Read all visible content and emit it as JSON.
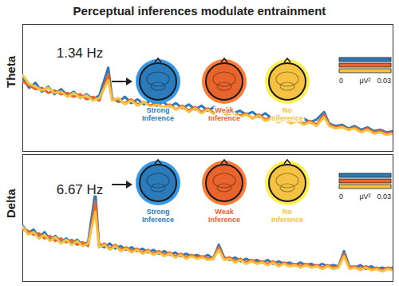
{
  "title": "Perceptual inferences modulate entrainment",
  "chart_data": [
    {
      "type": "line",
      "ylabel": "Theta",
      "annotation": "1.34 Hz",
      "tick_labels": false,
      "xlim": [
        0,
        5.8
      ],
      "ylim": [
        0,
        1
      ],
      "x": [
        0.0,
        0.1,
        0.2,
        0.3,
        0.4,
        0.5,
        0.6,
        0.7,
        0.8,
        0.9,
        1.0,
        1.1,
        1.2,
        1.34,
        1.4,
        1.5,
        1.6,
        1.7,
        1.8,
        1.9,
        2.0,
        2.1,
        2.2,
        2.3,
        2.4,
        2.5,
        2.6,
        2.7,
        2.8,
        2.9,
        3.0,
        3.1,
        3.2,
        3.3,
        3.4,
        3.5,
        3.6,
        3.7,
        3.8,
        3.9,
        4.0,
        4.1,
        4.2,
        4.3,
        4.4,
        4.5,
        4.6,
        4.72,
        4.8,
        4.9,
        5.0,
        5.1,
        5.2,
        5.3,
        5.4,
        5.5,
        5.6,
        5.7,
        5.8
      ],
      "series": [
        {
          "name": "Strong Inference",
          "color": "#2b7bba",
          "values": [
            0.58,
            0.5,
            0.54,
            0.47,
            0.51,
            0.45,
            0.49,
            0.44,
            0.47,
            0.42,
            0.45,
            0.41,
            0.44,
            0.66,
            0.42,
            0.39,
            0.43,
            0.38,
            0.41,
            0.37,
            0.4,
            0.36,
            0.39,
            0.35,
            0.38,
            0.34,
            0.37,
            0.33,
            0.36,
            0.32,
            0.35,
            0.31,
            0.34,
            0.3,
            0.32,
            0.29,
            0.31,
            0.27,
            0.3,
            0.26,
            0.28,
            0.25,
            0.27,
            0.24,
            0.26,
            0.23,
            0.25,
            0.31,
            0.22,
            0.2,
            0.21,
            0.18,
            0.2,
            0.17,
            0.19,
            0.16,
            0.17,
            0.15,
            0.16
          ]
        },
        {
          "name": "Weak Inference",
          "color": "#e8642c",
          "values": [
            0.55,
            0.52,
            0.49,
            0.5,
            0.46,
            0.48,
            0.45,
            0.46,
            0.43,
            0.45,
            0.41,
            0.43,
            0.4,
            0.61,
            0.41,
            0.4,
            0.38,
            0.41,
            0.37,
            0.39,
            0.36,
            0.38,
            0.34,
            0.37,
            0.33,
            0.36,
            0.32,
            0.35,
            0.31,
            0.34,
            0.3,
            0.33,
            0.29,
            0.31,
            0.28,
            0.3,
            0.26,
            0.29,
            0.25,
            0.27,
            0.24,
            0.26,
            0.23,
            0.25,
            0.22,
            0.24,
            0.21,
            0.29,
            0.21,
            0.19,
            0.2,
            0.17,
            0.19,
            0.16,
            0.18,
            0.15,
            0.16,
            0.14,
            0.15
          ]
        },
        {
          "name": "No Inference",
          "color": "#f5c242",
          "values": [
            0.6,
            0.53,
            0.51,
            0.48,
            0.5,
            0.46,
            0.47,
            0.43,
            0.46,
            0.42,
            0.44,
            0.4,
            0.42,
            0.56,
            0.4,
            0.42,
            0.37,
            0.4,
            0.36,
            0.39,
            0.35,
            0.37,
            0.35,
            0.36,
            0.33,
            0.35,
            0.31,
            0.34,
            0.3,
            0.33,
            0.29,
            0.32,
            0.28,
            0.31,
            0.27,
            0.29,
            0.26,
            0.28,
            0.24,
            0.26,
            0.23,
            0.25,
            0.22,
            0.24,
            0.21,
            0.23,
            0.2,
            0.27,
            0.2,
            0.18,
            0.19,
            0.17,
            0.18,
            0.15,
            0.17,
            0.14,
            0.15,
            0.13,
            0.14
          ]
        }
      ],
      "colorbar": {
        "range": [
          0,
          0.03
        ],
        "ticks": [
          0,
          0.03
        ],
        "label": "μV²"
      }
    },
    {
      "type": "line",
      "ylabel": "Delta",
      "annotation": "6.67 Hz",
      "tick_labels": false,
      "xlim": [
        0,
        34
      ],
      "ylim": [
        0,
        1
      ],
      "x": [
        0,
        0.5,
        1,
        1.5,
        2,
        2.5,
        3,
        3.5,
        4,
        4.5,
        5,
        5.5,
        6,
        6.67,
        7,
        7.5,
        8,
        8.5,
        9,
        9.5,
        10,
        10.5,
        11,
        11.5,
        12,
        12.5,
        13,
        13.5,
        14,
        14.5,
        15,
        15.5,
        16,
        16.5,
        17,
        17.5,
        18,
        18.5,
        19,
        19.5,
        20,
        20.5,
        21,
        21.5,
        22,
        22.5,
        23,
        23.5,
        24,
        24.5,
        25,
        25.5,
        26,
        26.5,
        27,
        27.5,
        28,
        28.5,
        29,
        29.5,
        30,
        30.5,
        31,
        31.5,
        32,
        32.5,
        33,
        33.5,
        34
      ],
      "series": [
        {
          "name": "Strong Inference",
          "color": "#2b7bba",
          "values": [
            0.44,
            0.38,
            0.41,
            0.35,
            0.39,
            0.33,
            0.36,
            0.31,
            0.34,
            0.3,
            0.33,
            0.29,
            0.31,
            0.71,
            0.29,
            0.27,
            0.3,
            0.26,
            0.28,
            0.25,
            0.27,
            0.24,
            0.26,
            0.23,
            0.25,
            0.22,
            0.24,
            0.21,
            0.23,
            0.2,
            0.22,
            0.2,
            0.21,
            0.19,
            0.21,
            0.18,
            0.29,
            0.19,
            0.17,
            0.19,
            0.16,
            0.18,
            0.16,
            0.17,
            0.15,
            0.17,
            0.14,
            0.16,
            0.14,
            0.15,
            0.13,
            0.15,
            0.13,
            0.14,
            0.12,
            0.14,
            0.12,
            0.13,
            0.12,
            0.24,
            0.12,
            0.11,
            0.13,
            0.1,
            0.12,
            0.1,
            0.11,
            0.1,
            0.11
          ]
        },
        {
          "name": "Weak Inference",
          "color": "#e8642c",
          "values": [
            0.41,
            0.4,
            0.37,
            0.38,
            0.34,
            0.36,
            0.32,
            0.34,
            0.31,
            0.33,
            0.29,
            0.31,
            0.28,
            0.63,
            0.28,
            0.3,
            0.26,
            0.29,
            0.25,
            0.27,
            0.24,
            0.26,
            0.23,
            0.25,
            0.22,
            0.24,
            0.21,
            0.23,
            0.2,
            0.22,
            0.19,
            0.21,
            0.19,
            0.2,
            0.18,
            0.19,
            0.27,
            0.18,
            0.19,
            0.16,
            0.18,
            0.15,
            0.17,
            0.15,
            0.16,
            0.14,
            0.16,
            0.13,
            0.15,
            0.13,
            0.14,
            0.12,
            0.14,
            0.12,
            0.13,
            0.11,
            0.13,
            0.11,
            0.12,
            0.22,
            0.11,
            0.12,
            0.1,
            0.12,
            0.1,
            0.11,
            0.09,
            0.11,
            0.1
          ]
        },
        {
          "name": "No Inference",
          "color": "#f5c242",
          "values": [
            0.43,
            0.37,
            0.39,
            0.34,
            0.37,
            0.32,
            0.35,
            0.3,
            0.33,
            0.29,
            0.32,
            0.28,
            0.3,
            0.55,
            0.27,
            0.29,
            0.25,
            0.28,
            0.24,
            0.26,
            0.23,
            0.25,
            0.22,
            0.24,
            0.21,
            0.23,
            0.2,
            0.22,
            0.19,
            0.21,
            0.18,
            0.2,
            0.18,
            0.19,
            0.17,
            0.18,
            0.25,
            0.17,
            0.18,
            0.15,
            0.17,
            0.14,
            0.16,
            0.14,
            0.15,
            0.13,
            0.15,
            0.12,
            0.14,
            0.12,
            0.13,
            0.11,
            0.13,
            0.11,
            0.12,
            0.1,
            0.12,
            0.1,
            0.11,
            0.2,
            0.1,
            0.11,
            0.09,
            0.11,
            0.09,
            0.1,
            0.08,
            0.1,
            0.09
          ]
        }
      ],
      "colorbar": {
        "range": [
          0,
          0.03
        ],
        "ticks": [
          0,
          0.03
        ],
        "label": "μV²"
      }
    }
  ]
}
